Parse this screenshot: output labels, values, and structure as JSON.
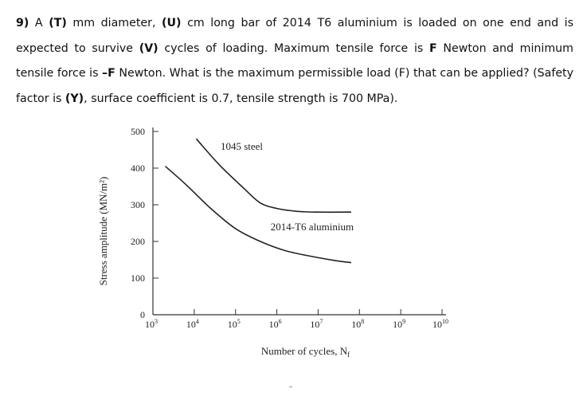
{
  "question": {
    "number": "9)",
    "p1": " A ",
    "T": "(T)",
    "p2": " mm diameter, ",
    "U": "(U)",
    "p3": " cm long bar of 2014 T6 aluminium is loaded on one end and is expected to survive ",
    "V": "(V)",
    "p4": " cycles of loading. Maximum tensile force is ",
    "F1": "F",
    "p5": " Newton and minimum tensile force is ",
    "F2": "–F",
    "p6": " Newton. What is the maximum permissible load (F) that can be applied? (Safety factor is ",
    "Y": "(Y)",
    "p7": ", surface coefficient is 0.7, tensile strength is 700 MPa)."
  },
  "chart_data": {
    "type": "line",
    "title": "",
    "xlabel": "Number of cycles, N",
    "xlabel_sub": "f",
    "ylabel": "Stress amplitude (MN/m²)",
    "x_scale": "log",
    "x_ticks": [
      {
        "base": "10",
        "exp": "3"
      },
      {
        "base": "10",
        "exp": "4"
      },
      {
        "base": "10",
        "exp": "5"
      },
      {
        "base": "10",
        "exp": "6"
      },
      {
        "base": "10",
        "exp": "7"
      },
      {
        "base": "10",
        "exp": "8"
      },
      {
        "base": "10",
        "exp": "9"
      },
      {
        "base": "10",
        "exp": "10"
      }
    ],
    "y_ticks": [
      "0",
      "100",
      "200",
      "300",
      "400",
      "500"
    ],
    "ylim": [
      0,
      500
    ],
    "xlim_log10": [
      3,
      10
    ],
    "series": [
      {
        "name": "1045 steel",
        "points": [
          [
            4.05,
            480
          ],
          [
            4.6,
            410
          ],
          [
            5.2,
            345
          ],
          [
            5.6,
            305
          ],
          [
            6.0,
            290
          ],
          [
            6.5,
            282
          ],
          [
            7.0,
            280
          ],
          [
            7.8,
            280
          ]
        ]
      },
      {
        "name": "2014-T6 aluminium",
        "points": [
          [
            3.3,
            405
          ],
          [
            3.8,
            355
          ],
          [
            4.4,
            290
          ],
          [
            5.0,
            235
          ],
          [
            5.6,
            200
          ],
          [
            6.2,
            175
          ],
          [
            6.8,
            160
          ],
          [
            7.4,
            148
          ],
          [
            7.8,
            142
          ]
        ]
      }
    ]
  }
}
